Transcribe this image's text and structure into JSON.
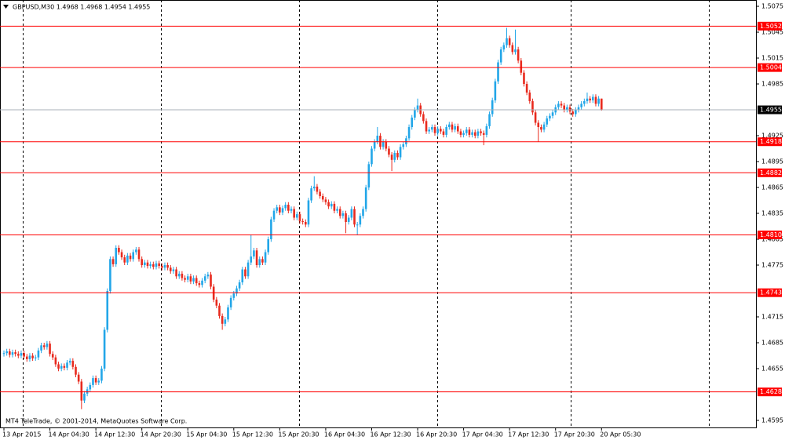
{
  "chart_data": {
    "type": "candlestick",
    "title": "GBPUSD,M30  1.4968 1.4968 1.4954 1.4955",
    "footer": "MT4 TeleTrade, © 2001-2014, MetaQuotes Software Corp.",
    "categories": [
      "13 Apr 2015",
      null,
      null,
      null,
      null,
      null,
      null,
      null,
      null,
      null,
      null,
      null,
      null,
      null,
      null,
      null,
      "14 Apr 04:30",
      null,
      null,
      null,
      null,
      null,
      null,
      null,
      null,
      null,
      null,
      null,
      null,
      null,
      null,
      null,
      "14 Apr 12:30",
      null,
      null,
      null,
      null,
      null,
      null,
      null,
      null,
      null,
      null,
      null,
      null,
      null,
      null,
      null,
      "14 Apr 20:30",
      null,
      null,
      null,
      null,
      null,
      null,
      null,
      null,
      null,
      null,
      null,
      null,
      null,
      null,
      null,
      "15 Apr 04:30",
      null,
      null,
      null,
      null,
      null,
      null,
      null,
      null,
      null,
      null,
      null,
      null,
      null,
      null,
      null,
      "15 Apr 12:30",
      null,
      null,
      null,
      null,
      null,
      null,
      null,
      null,
      null,
      null,
      null,
      null,
      null,
      null,
      null,
      "15 Apr 20:30",
      null,
      null,
      null,
      null,
      null,
      null,
      null,
      null,
      null,
      null,
      null,
      null,
      null,
      null,
      null,
      "16 Apr 04:30",
      null,
      null,
      null,
      null,
      null,
      null,
      null,
      null,
      null,
      null,
      null,
      null,
      null,
      null,
      null,
      "16 Apr 12:30",
      null,
      null,
      null,
      null,
      null,
      null,
      null,
      null,
      null,
      null,
      null,
      null,
      null,
      null,
      null,
      "16 Apr 20:30",
      null,
      null,
      null,
      null,
      null,
      null,
      null,
      null,
      null,
      null,
      null,
      null,
      null,
      null,
      null,
      "17 Apr 04:30",
      null,
      null,
      null,
      null,
      null,
      null,
      null,
      null,
      null,
      null,
      null,
      null,
      null,
      null,
      null,
      "17 Apr 12:30",
      null,
      null,
      null,
      null,
      null,
      null,
      null,
      null,
      null,
      null,
      null,
      null,
      null,
      null,
      null,
      "17 Apr 20:30",
      null,
      null,
      null,
      null,
      null,
      null,
      null,
      null,
      null,
      null,
      null,
      null,
      null,
      null,
      null,
      "20 Apr 05:30"
    ],
    "open": [
      1.4672,
      1.4673,
      1.4675,
      1.4671,
      1.4674,
      1.4672,
      1.467,
      1.4673,
      1.4669,
      1.4666,
      1.467,
      1.4667,
      1.4668,
      1.4676,
      1.4682,
      1.468,
      1.4684,
      1.4672,
      1.4668,
      1.466,
      1.4655,
      1.4658,
      1.4656,
      1.4662,
      1.4664,
      1.4657,
      1.4648,
      1.464,
      1.4618,
      1.4626,
      1.4631,
      1.4636,
      1.4644,
      1.4639,
      1.4641,
      1.4655,
      1.47,
      1.4745,
      1.4782,
      1.4776,
      1.4795,
      1.479,
      1.4784,
      1.4778,
      1.4786,
      1.4782,
      1.479,
      1.4793,
      1.4782,
      1.4775,
      1.4778,
      1.4774,
      1.4776,
      1.4773,
      1.4777,
      1.4774,
      1.4772,
      1.4775,
      1.4772,
      1.4768,
      1.477,
      1.4762,
      1.4765,
      1.476,
      1.4758,
      1.4762,
      1.4756,
      1.476,
      1.4754,
      1.4752,
      1.4757,
      1.4762,
      1.4764,
      1.475,
      1.4735,
      1.4728,
      1.4716,
      1.4707,
      1.4712,
      1.4726,
      1.4737,
      1.4742,
      1.4748,
      1.4755,
      1.477,
      1.4762,
      1.4778,
      1.4785,
      1.4792,
      1.4775,
      1.4782,
      1.4778,
      1.479,
      1.4805,
      1.4828,
      1.4838,
      1.4842,
      1.4836,
      1.4841,
      1.4845,
      1.4838,
      1.484,
      1.483,
      1.4834,
      1.4826,
      1.4825,
      1.4822,
      1.485,
      1.4864,
      1.4866,
      1.486,
      1.4855,
      1.4851,
      1.4848,
      1.4843,
      1.4846,
      1.4838,
      1.484,
      1.4832,
      1.4835,
      1.4825,
      1.483,
      1.484,
      1.4822,
      1.4822,
      1.4832,
      1.484,
      1.4865,
      1.4892,
      1.491,
      1.4918,
      1.4925,
      1.4912,
      1.4918,
      1.491,
      1.4903,
      1.4897,
      1.4905,
      1.49,
      1.4912,
      1.4915,
      1.4922,
      1.4935,
      1.4946,
      1.4955,
      1.496,
      1.495,
      1.4942,
      1.493,
      1.4932,
      1.4935,
      1.4928,
      1.4933,
      1.493,
      1.4926,
      1.4935,
      1.4938,
      1.4932,
      1.4936,
      1.493,
      1.4926,
      1.4928,
      1.4932,
      1.4926,
      1.4929,
      1.4925,
      1.493,
      1.4928,
      1.4926,
      1.4936,
      1.495,
      1.4966,
      1.4988,
      1.501,
      1.5025,
      1.503,
      1.5038,
      1.503,
      1.5022,
      1.5025,
      1.5012,
      1.4998,
      1.4985,
      1.4975,
      1.4965,
      1.4952,
      1.494,
      1.4935,
      1.4932,
      1.4938,
      1.4945,
      1.4948,
      1.4952,
      1.4958,
      1.4962,
      1.496,
      1.4955,
      1.4958,
      1.4953,
      1.495,
      1.4955,
      1.4958,
      1.4962,
      1.4965,
      1.4968,
      1.4966,
      1.497,
      1.4962,
      1.4968
    ],
    "high": [
      1.4676,
      1.4678,
      1.4678,
      1.4677,
      1.4677,
      1.4675,
      1.4676,
      1.4676,
      1.4672,
      1.4673,
      1.4673,
      1.4671,
      1.4679,
      1.4685,
      1.4685,
      1.4687,
      1.4687,
      1.4675,
      1.4671,
      1.4663,
      1.4661,
      1.4661,
      1.4665,
      1.4667,
      1.4667,
      1.466,
      1.4651,
      1.4643,
      1.4629,
      1.4634,
      1.4639,
      1.4647,
      1.4647,
      1.4644,
      1.4658,
      1.4703,
      1.4748,
      1.4785,
      1.4785,
      1.4798,
      1.4798,
      1.4793,
      1.4787,
      1.4789,
      1.4789,
      1.4793,
      1.4796,
      1.4796,
      1.4785,
      1.4781,
      1.4781,
      1.4779,
      1.4779,
      1.478,
      1.478,
      1.4777,
      1.4778,
      1.4778,
      1.4775,
      1.4773,
      1.4773,
      1.4768,
      1.4768,
      1.4763,
      1.4765,
      1.4765,
      1.4763,
      1.4763,
      1.4757,
      1.476,
      1.4765,
      1.4767,
      1.4767,
      1.4753,
      1.4738,
      1.4731,
      1.4719,
      1.4715,
      1.4729,
      1.474,
      1.4745,
      1.4751,
      1.4758,
      1.4773,
      1.4773,
      1.4781,
      1.481,
      1.4795,
      1.4795,
      1.4785,
      1.4785,
      1.4793,
      1.4808,
      1.4831,
      1.4841,
      1.4845,
      1.4845,
      1.4844,
      1.4848,
      1.4848,
      1.4843,
      1.4843,
      1.4837,
      1.4837,
      1.4829,
      1.4828,
      1.4853,
      1.4867,
      1.4878,
      1.4869,
      1.4863,
      1.4858,
      1.4854,
      1.4851,
      1.4849,
      1.4849,
      1.4843,
      1.4843,
      1.4838,
      1.4838,
      1.4833,
      1.4843,
      1.4843,
      1.4825,
      1.4835,
      1.4843,
      1.4868,
      1.4895,
      1.4913,
      1.4921,
      1.4935,
      1.4928,
      1.4921,
      1.4921,
      1.4913,
      1.4906,
      1.4908,
      1.4908,
      1.4915,
      1.4918,
      1.4925,
      1.4938,
      1.4949,
      1.4958,
      1.4968,
      1.4963,
      1.4953,
      1.4945,
      1.4935,
      1.4938,
      1.4938,
      1.4936,
      1.4936,
      1.4933,
      1.4938,
      1.4941,
      1.4941,
      1.4939,
      1.4939,
      1.4933,
      1.4931,
      1.4935,
      1.4935,
      1.4932,
      1.4932,
      1.4933,
      1.4933,
      1.4931,
      1.4939,
      1.4953,
      1.4969,
      1.4991,
      1.5013,
      1.5028,
      1.5033,
      1.505,
      1.5041,
      1.5033,
      1.5048,
      1.5028,
      1.5015,
      1.5001,
      1.4988,
      1.4978,
      1.4968,
      1.4955,
      1.4943,
      1.4938,
      1.4941,
      1.4948,
      1.4951,
      1.4955,
      1.4961,
      1.4965,
      1.4965,
      1.4963,
      1.4961,
      1.4961,
      1.4956,
      1.4958,
      1.4961,
      1.4965,
      1.4968,
      1.4975,
      1.4971,
      1.4973,
      1.4973,
      1.4971,
      1.4968
    ],
    "low": [
      1.4669,
      1.467,
      1.4668,
      1.4668,
      1.4669,
      1.4667,
      1.4667,
      1.4666,
      1.4663,
      1.4663,
      1.4664,
      1.4664,
      1.4665,
      1.4673,
      1.4677,
      1.4677,
      1.4669,
      1.4665,
      1.4657,
      1.4652,
      1.4652,
      1.4653,
      1.4653,
      1.4659,
      1.4654,
      1.4645,
      1.4637,
      1.4608,
      1.4615,
      1.4623,
      1.4628,
      1.4633,
      1.4636,
      1.4636,
      1.4638,
      1.4652,
      1.4697,
      1.4742,
      1.4773,
      1.4773,
      1.4787,
      1.4781,
      1.4775,
      1.4775,
      1.4779,
      1.4779,
      1.4787,
      1.4779,
      1.4772,
      1.4772,
      1.4771,
      1.4771,
      1.477,
      1.477,
      1.4771,
      1.4769,
      1.4769,
      1.4769,
      1.4765,
      1.4765,
      1.4759,
      1.4759,
      1.4757,
      1.4755,
      1.4755,
      1.4753,
      1.4753,
      1.4751,
      1.4749,
      1.4749,
      1.4754,
      1.4759,
      1.4747,
      1.4732,
      1.4725,
      1.4713,
      1.47,
      1.4704,
      1.4709,
      1.4723,
      1.4734,
      1.4739,
      1.4745,
      1.4752,
      1.4759,
      1.4759,
      1.4775,
      1.4782,
      1.4772,
      1.4772,
      1.4775,
      1.4775,
      1.4787,
      1.4802,
      1.4825,
      1.4835,
      1.4833,
      1.4833,
      1.4838,
      1.4835,
      1.4835,
      1.4827,
      1.4827,
      1.4823,
      1.4822,
      1.4819,
      1.4819,
      1.4847,
      1.4861,
      1.4857,
      1.4852,
      1.4848,
      1.4845,
      1.484,
      1.484,
      1.4835,
      1.4835,
      1.4829,
      1.4829,
      1.4812,
      1.4822,
      1.4827,
      1.4819,
      1.481,
      1.4819,
      1.4829,
      1.4837,
      1.4862,
      1.4889,
      1.4907,
      1.4915,
      1.4909,
      1.4909,
      1.4907,
      1.49,
      1.4884,
      1.4894,
      1.4897,
      1.4897,
      1.4909,
      1.4912,
      1.4919,
      1.4932,
      1.4943,
      1.4952,
      1.4947,
      1.4939,
      1.4927,
      1.4927,
      1.4929,
      1.4925,
      1.4925,
      1.4927,
      1.4923,
      1.4923,
      1.4932,
      1.4929,
      1.4929,
      1.4927,
      1.4923,
      1.4923,
      1.4925,
      1.4923,
      1.4923,
      1.4922,
      1.4922,
      1.4925,
      1.4914,
      1.4923,
      1.4933,
      1.4947,
      1.4963,
      1.4985,
      1.5007,
      1.5022,
      1.5027,
      1.5027,
      1.5019,
      1.5019,
      1.5009,
      1.4995,
      1.4982,
      1.4972,
      1.4962,
      1.4949,
      1.4937,
      1.4918,
      1.4929,
      1.4929,
      1.4935,
      1.4942,
      1.4945,
      1.4949,
      1.4955,
      1.4957,
      1.4952,
      1.4952,
      1.495,
      1.4947,
      1.4947,
      1.4952,
      1.4955,
      1.4959,
      1.4962,
      1.4963,
      1.4963,
      1.4959,
      1.4959,
      1.4954
    ],
    "close": [
      1.4673,
      1.4675,
      1.4671,
      1.4674,
      1.4672,
      1.467,
      1.4673,
      1.4669,
      1.4666,
      1.467,
      1.4667,
      1.4668,
      1.4676,
      1.4682,
      1.468,
      1.4684,
      1.4672,
      1.4668,
      1.466,
      1.4655,
      1.4658,
      1.4656,
      1.4662,
      1.4664,
      1.4657,
      1.4648,
      1.464,
      1.4618,
      1.4626,
      1.4631,
      1.4636,
      1.4644,
      1.4639,
      1.4641,
      1.4655,
      1.47,
      1.4745,
      1.4782,
      1.4776,
      1.4795,
      1.479,
      1.4784,
      1.4778,
      1.4786,
      1.4782,
      1.479,
      1.4793,
      1.4782,
      1.4775,
      1.4778,
      1.4774,
      1.4776,
      1.4773,
      1.4777,
      1.4774,
      1.4772,
      1.4775,
      1.4772,
      1.4768,
      1.477,
      1.4762,
      1.4765,
      1.476,
      1.4758,
      1.4762,
      1.4756,
      1.476,
      1.4754,
      1.4752,
      1.4757,
      1.4762,
      1.4764,
      1.475,
      1.4735,
      1.4728,
      1.4716,
      1.4707,
      1.4712,
      1.4726,
      1.4737,
      1.4742,
      1.4748,
      1.4755,
      1.477,
      1.4762,
      1.4778,
      1.4785,
      1.4792,
      1.4775,
      1.4782,
      1.4778,
      1.479,
      1.4805,
      1.4828,
      1.4838,
      1.4842,
      1.4836,
      1.4841,
      1.4845,
      1.4838,
      1.484,
      1.483,
      1.4834,
      1.4826,
      1.4825,
      1.4822,
      1.485,
      1.4864,
      1.4866,
      1.486,
      1.4855,
      1.4851,
      1.4848,
      1.4843,
      1.4846,
      1.4838,
      1.484,
      1.4832,
      1.4835,
      1.4825,
      1.483,
      1.484,
      1.4822,
      1.4822,
      1.4832,
      1.484,
      1.4865,
      1.4892,
      1.491,
      1.4918,
      1.4925,
      1.4912,
      1.4918,
      1.491,
      1.4903,
      1.4897,
      1.4905,
      1.49,
      1.4912,
      1.4915,
      1.4922,
      1.4935,
      1.4946,
      1.4955,
      1.496,
      1.495,
      1.4942,
      1.493,
      1.4932,
      1.4935,
      1.4928,
      1.4933,
      1.493,
      1.4926,
      1.4935,
      1.4938,
      1.4932,
      1.4936,
      1.493,
      1.4926,
      1.4928,
      1.4932,
      1.4926,
      1.4929,
      1.4925,
      1.493,
      1.4928,
      1.4926,
      1.4936,
      1.495,
      1.4966,
      1.4988,
      1.501,
      1.5025,
      1.503,
      1.5038,
      1.503,
      1.5022,
      1.5025,
      1.5012,
      1.4998,
      1.4985,
      1.4975,
      1.4965,
      1.4952,
      1.494,
      1.4935,
      1.4932,
      1.4938,
      1.4945,
      1.4948,
      1.4952,
      1.4958,
      1.4962,
      1.496,
      1.4955,
      1.4958,
      1.4953,
      1.495,
      1.4955,
      1.4958,
      1.4962,
      1.4965,
      1.4968,
      1.4966,
      1.497,
      1.4962,
      1.4968,
      1.4955
    ],
    "bull_color": "#22a6e8",
    "bear_color": "#e82a1e",
    "ylim": [
      1.45868,
      1.50823
    ],
    "yticks": [
      1.5075,
      1.5045,
      1.5015,
      1.4985,
      1.4925,
      1.4895,
      1.4865,
      1.4835,
      1.4805,
      1.4775,
      1.4715,
      1.4685,
      1.4655,
      1.4595
    ],
    "levels": [
      1.5052,
      1.5004,
      1.4918,
      1.4882,
      {
        "value": 1.481,
        "label": "1.4810"
      },
      1.4743,
      1.4628
    ],
    "level_color": "#ff0000",
    "current_price": 1.4955,
    "current_price_color": "#a8b0b8"
  }
}
